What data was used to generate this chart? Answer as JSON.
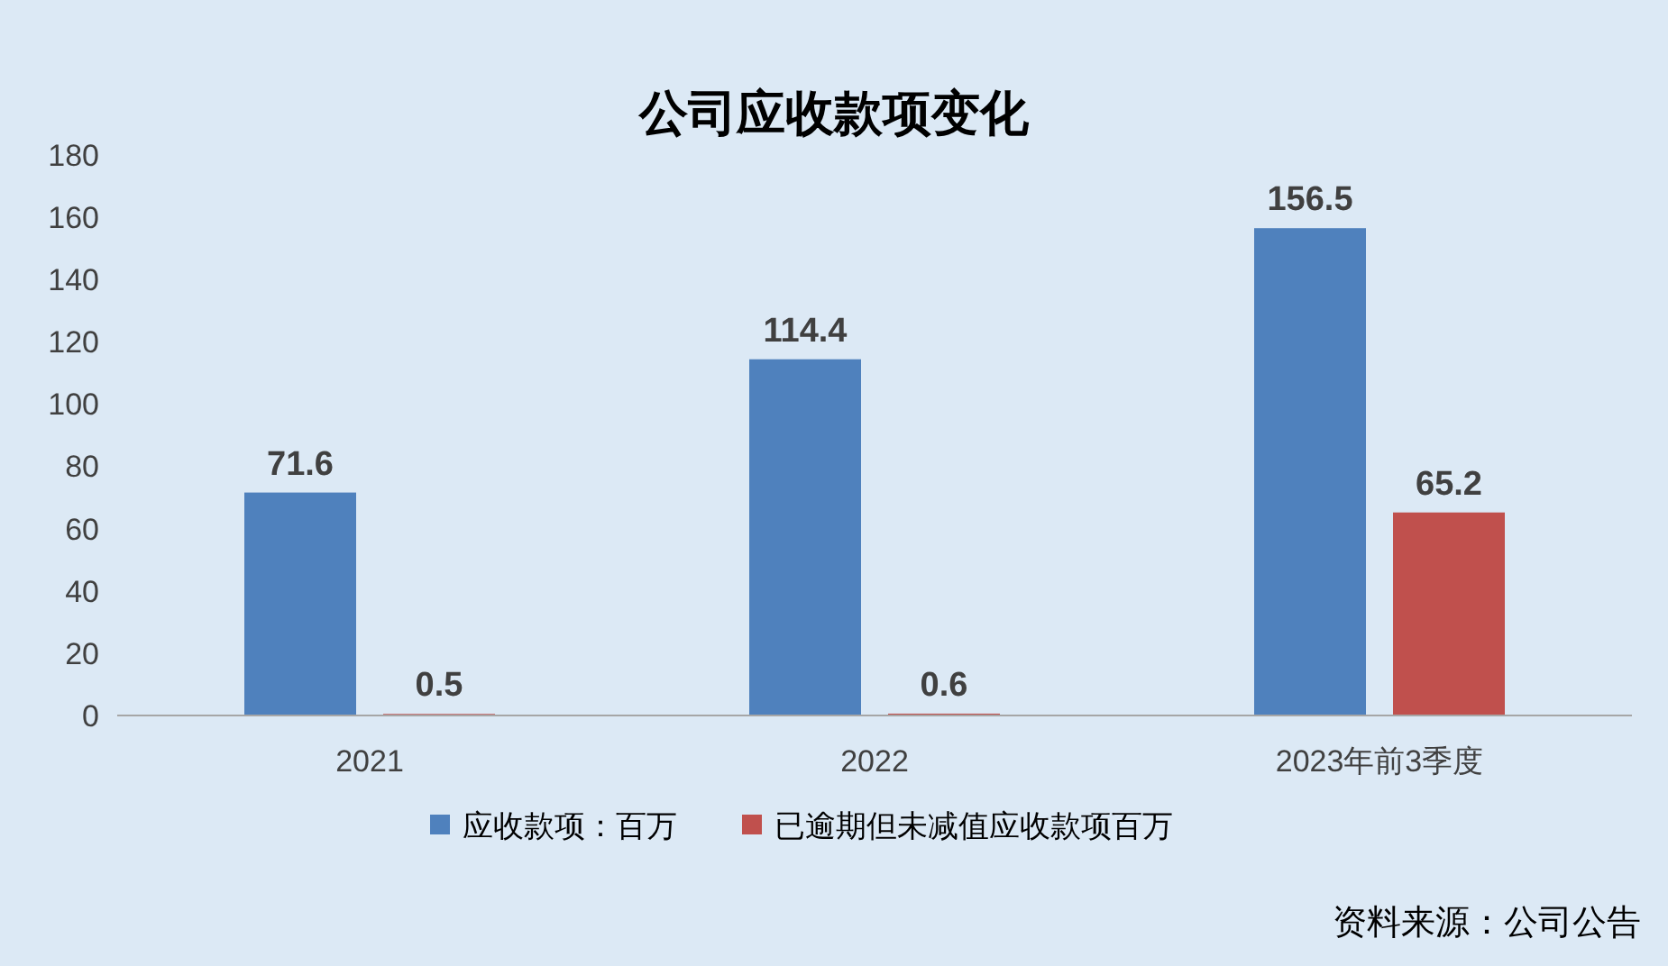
{
  "chart_data": {
    "type": "bar",
    "title": "公司应收款项变化",
    "categories": [
      "2021",
      "2022",
      "2023年前3季度"
    ],
    "series": [
      {
        "name": "应收款项：百万",
        "color": "#4f81bd",
        "values": [
          71.6,
          114.4,
          156.5
        ]
      },
      {
        "name": "已逾期但未减值应收款项百万",
        "color": "#c0504d",
        "values": [
          0.5,
          0.6,
          65.2
        ]
      }
    ],
    "ylim": [
      0,
      180
    ],
    "yticks": [
      0,
      20,
      40,
      60,
      80,
      100,
      120,
      140,
      160,
      180
    ],
    "grid": false,
    "legend": "bottom",
    "data_labels": true,
    "annotations": [
      "资料来源：公司公告"
    ]
  }
}
